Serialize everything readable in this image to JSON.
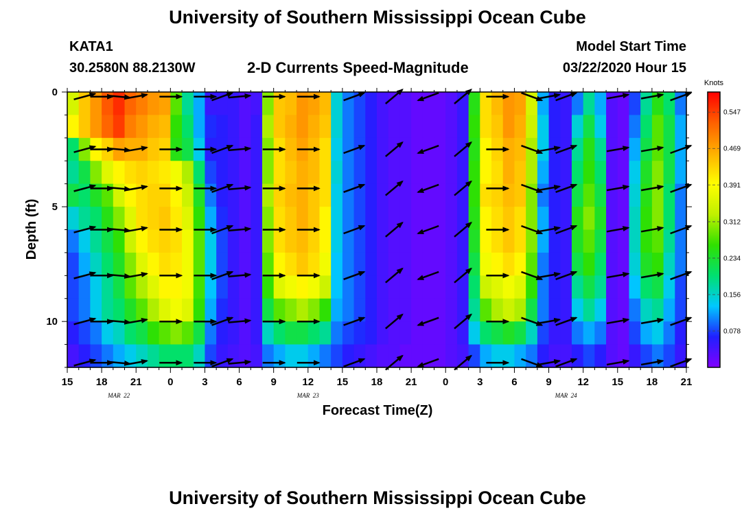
{
  "header": {
    "title": "University of Southern Mississippi Ocean Cube",
    "station": "KATA1",
    "coords": "30.2580N 88.2130W",
    "plot_title": "2-D Currents Speed-Magnitude",
    "start_label": "Model Start Time",
    "start_value": "03/22/2020 Hour 15",
    "footer_title": "University of Southern Mississippi Ocean Cube"
  },
  "colors": {
    "scale": [
      "#8000ff",
      "#2020ff",
      "#00c8ff",
      "#00e070",
      "#30e000",
      "#c0f000",
      "#ffff00",
      "#ffb000",
      "#ff6000",
      "#ff0000"
    ]
  },
  "chart_data": {
    "type": "heatmap",
    "title": "2-D Currents Speed-Magnitude",
    "xlabel": "Forecast Time(Z)",
    "ylabel": "Depth (ft)",
    "x_range_hours": [
      0,
      54
    ],
    "xticks": [
      {
        "h": 0,
        "label": "15"
      },
      {
        "h": 3,
        "label": "18"
      },
      {
        "h": 6,
        "label": "21"
      },
      {
        "h": 9,
        "label": "0"
      },
      {
        "h": 12,
        "label": "3"
      },
      {
        "h": 15,
        "label": "6"
      },
      {
        "h": 18,
        "label": "9"
      },
      {
        "h": 21,
        "label": "12"
      },
      {
        "h": 24,
        "label": "15"
      },
      {
        "h": 27,
        "label": "18"
      },
      {
        "h": 30,
        "label": "21"
      },
      {
        "h": 33,
        "label": "0"
      },
      {
        "h": 36,
        "label": "3"
      },
      {
        "h": 39,
        "label": "6"
      },
      {
        "h": 42,
        "label": "9"
      },
      {
        "h": 45,
        "label": "12"
      },
      {
        "h": 48,
        "label": "15"
      },
      {
        "h": 51,
        "label": "18"
      },
      {
        "h": 54,
        "label": "21"
      }
    ],
    "date_labels": [
      {
        "h": 4.5,
        "label": "MAR 22"
      },
      {
        "h": 21,
        "label": "MAR 23"
      },
      {
        "h": 43.5,
        "label": "MAR 24"
      }
    ],
    "y_range_ft": [
      0,
      12
    ],
    "yticks": [
      0,
      5,
      10
    ],
    "colorbar": {
      "unit": "Knots",
      "range": [
        0.0,
        0.59
      ],
      "ticks": [
        0.078,
        0.156,
        0.234,
        0.312,
        0.391,
        0.469,
        0.547
      ],
      "tick_labels": [
        "0.078",
        "0.156",
        "0.234",
        "0.312",
        "0.391",
        "0.469",
        "0.547"
      ]
    },
    "depths_ft": [
      0.5,
      1.5,
      2.5,
      3.5,
      4.5,
      5.5,
      6.5,
      7.5,
      8.5,
      9.5,
      10.5,
      11.5
    ],
    "time_hours": [
      0,
      1,
      2,
      3,
      4,
      5,
      6,
      7,
      8,
      9,
      10,
      11,
      12,
      13,
      14,
      15,
      16,
      17,
      18,
      19,
      20,
      21,
      22,
      23,
      24,
      25,
      26,
      27,
      28,
      29,
      30,
      31,
      32,
      33,
      34,
      35,
      36,
      37,
      38,
      39,
      40,
      41,
      42,
      43,
      44,
      45,
      46,
      47,
      48,
      49,
      50,
      51,
      52,
      53
    ],
    "speed_knots": [
      [
        0.35,
        0.44,
        0.48,
        0.53,
        0.56,
        0.52,
        0.5,
        0.48,
        0.47,
        0.28,
        0.18,
        0.12,
        0.05,
        0.05,
        0.05,
        0.03,
        0.04,
        0.3,
        0.44,
        0.45,
        0.48,
        0.47,
        0.45,
        0.15,
        0.1,
        0.08,
        0.06,
        0.04,
        0.03,
        0.03,
        0.02,
        0.02,
        0.02,
        0.03,
        0.05,
        0.25,
        0.42,
        0.45,
        0.48,
        0.47,
        0.35,
        0.12,
        0.06,
        0.05,
        0.1,
        0.18,
        0.12,
        0.03,
        0.02,
        0.08,
        0.18,
        0.25,
        0.2,
        0.1
      ],
      [
        0.4,
        0.44,
        0.48,
        0.52,
        0.55,
        0.5,
        0.48,
        0.46,
        0.45,
        0.26,
        0.2,
        0.12,
        0.07,
        0.06,
        0.05,
        0.03,
        0.05,
        0.32,
        0.44,
        0.46,
        0.48,
        0.46,
        0.44,
        0.15,
        0.1,
        0.08,
        0.06,
        0.04,
        0.03,
        0.03,
        0.02,
        0.02,
        0.02,
        0.03,
        0.05,
        0.26,
        0.42,
        0.44,
        0.48,
        0.46,
        0.34,
        0.14,
        0.06,
        0.05,
        0.15,
        0.22,
        0.14,
        0.03,
        0.02,
        0.1,
        0.2,
        0.28,
        0.22,
        0.12
      ],
      [
        0.2,
        0.3,
        0.4,
        0.43,
        0.47,
        0.46,
        0.46,
        0.44,
        0.43,
        0.25,
        0.22,
        0.14,
        0.06,
        0.06,
        0.05,
        0.03,
        0.05,
        0.3,
        0.42,
        0.45,
        0.47,
        0.45,
        0.42,
        0.14,
        0.1,
        0.08,
        0.06,
        0.04,
        0.03,
        0.03,
        0.02,
        0.02,
        0.02,
        0.03,
        0.05,
        0.25,
        0.4,
        0.43,
        0.46,
        0.45,
        0.32,
        0.14,
        0.06,
        0.05,
        0.18,
        0.25,
        0.18,
        0.03,
        0.02,
        0.12,
        0.22,
        0.28,
        0.22,
        0.12
      ],
      [
        0.18,
        0.22,
        0.3,
        0.36,
        0.4,
        0.42,
        0.43,
        0.42,
        0.41,
        0.38,
        0.32,
        0.2,
        0.08,
        0.06,
        0.05,
        0.03,
        0.05,
        0.3,
        0.42,
        0.44,
        0.46,
        0.45,
        0.42,
        0.15,
        0.1,
        0.08,
        0.06,
        0.04,
        0.03,
        0.03,
        0.02,
        0.02,
        0.02,
        0.03,
        0.05,
        0.26,
        0.4,
        0.42,
        0.46,
        0.44,
        0.32,
        0.12,
        0.06,
        0.05,
        0.2,
        0.26,
        0.2,
        0.03,
        0.02,
        0.14,
        0.24,
        0.3,
        0.22,
        0.12
      ],
      [
        0.22,
        0.2,
        0.24,
        0.28,
        0.35,
        0.4,
        0.42,
        0.43,
        0.43,
        0.4,
        0.34,
        0.24,
        0.1,
        0.06,
        0.05,
        0.03,
        0.05,
        0.32,
        0.43,
        0.45,
        0.46,
        0.44,
        0.42,
        0.14,
        0.1,
        0.08,
        0.06,
        0.04,
        0.03,
        0.03,
        0.02,
        0.02,
        0.02,
        0.03,
        0.05,
        0.26,
        0.42,
        0.43,
        0.45,
        0.44,
        0.3,
        0.1,
        0.06,
        0.05,
        0.22,
        0.28,
        0.22,
        0.03,
        0.02,
        0.15,
        0.25,
        0.3,
        0.2,
        0.1
      ],
      [
        0.15,
        0.18,
        0.2,
        0.25,
        0.3,
        0.36,
        0.42,
        0.43,
        0.44,
        0.41,
        0.36,
        0.26,
        0.12,
        0.07,
        0.05,
        0.03,
        0.05,
        0.3,
        0.42,
        0.44,
        0.46,
        0.44,
        0.4,
        0.14,
        0.1,
        0.08,
        0.06,
        0.04,
        0.03,
        0.03,
        0.02,
        0.02,
        0.02,
        0.03,
        0.05,
        0.25,
        0.4,
        0.42,
        0.44,
        0.42,
        0.3,
        0.12,
        0.06,
        0.05,
        0.25,
        0.3,
        0.24,
        0.03,
        0.02,
        0.16,
        0.26,
        0.3,
        0.2,
        0.1
      ],
      [
        0.1,
        0.14,
        0.18,
        0.22,
        0.26,
        0.34,
        0.4,
        0.42,
        0.43,
        0.42,
        0.38,
        0.28,
        0.14,
        0.08,
        0.05,
        0.03,
        0.05,
        0.3,
        0.42,
        0.44,
        0.45,
        0.43,
        0.4,
        0.14,
        0.1,
        0.08,
        0.06,
        0.04,
        0.03,
        0.03,
        0.02,
        0.02,
        0.02,
        0.03,
        0.05,
        0.24,
        0.4,
        0.42,
        0.44,
        0.42,
        0.3,
        0.12,
        0.06,
        0.05,
        0.24,
        0.28,
        0.22,
        0.03,
        0.02,
        0.16,
        0.26,
        0.28,
        0.18,
        0.1
      ],
      [
        0.08,
        0.12,
        0.16,
        0.2,
        0.24,
        0.3,
        0.36,
        0.4,
        0.42,
        0.41,
        0.38,
        0.28,
        0.14,
        0.08,
        0.05,
        0.03,
        0.05,
        0.28,
        0.4,
        0.42,
        0.44,
        0.42,
        0.38,
        0.13,
        0.1,
        0.08,
        0.06,
        0.04,
        0.03,
        0.03,
        0.02,
        0.02,
        0.02,
        0.03,
        0.05,
        0.22,
        0.38,
        0.4,
        0.42,
        0.4,
        0.28,
        0.1,
        0.06,
        0.05,
        0.22,
        0.26,
        0.2,
        0.03,
        0.02,
        0.15,
        0.24,
        0.26,
        0.16,
        0.1
      ],
      [
        0.08,
        0.1,
        0.14,
        0.18,
        0.22,
        0.28,
        0.32,
        0.36,
        0.4,
        0.4,
        0.38,
        0.27,
        0.13,
        0.08,
        0.05,
        0.03,
        0.05,
        0.26,
        0.36,
        0.38,
        0.4,
        0.38,
        0.34,
        0.13,
        0.1,
        0.08,
        0.06,
        0.04,
        0.03,
        0.03,
        0.02,
        0.02,
        0.02,
        0.03,
        0.05,
        0.2,
        0.34,
        0.36,
        0.38,
        0.36,
        0.26,
        0.1,
        0.06,
        0.05,
        0.18,
        0.22,
        0.18,
        0.03,
        0.02,
        0.13,
        0.2,
        0.22,
        0.14,
        0.08
      ],
      [
        0.08,
        0.1,
        0.14,
        0.18,
        0.2,
        0.24,
        0.28,
        0.32,
        0.36,
        0.38,
        0.36,
        0.26,
        0.12,
        0.07,
        0.05,
        0.03,
        0.05,
        0.22,
        0.28,
        0.3,
        0.32,
        0.3,
        0.26,
        0.12,
        0.1,
        0.08,
        0.06,
        0.04,
        0.03,
        0.03,
        0.02,
        0.02,
        0.02,
        0.03,
        0.05,
        0.18,
        0.28,
        0.32,
        0.34,
        0.32,
        0.22,
        0.1,
        0.06,
        0.05,
        0.14,
        0.18,
        0.14,
        0.03,
        0.02,
        0.1,
        0.16,
        0.18,
        0.12,
        0.08
      ],
      [
        0.06,
        0.08,
        0.1,
        0.14,
        0.16,
        0.2,
        0.22,
        0.26,
        0.28,
        0.3,
        0.28,
        0.22,
        0.1,
        0.06,
        0.05,
        0.03,
        0.05,
        0.16,
        0.2,
        0.22,
        0.22,
        0.2,
        0.18,
        0.1,
        0.08,
        0.07,
        0.06,
        0.04,
        0.03,
        0.03,
        0.02,
        0.02,
        0.02,
        0.03,
        0.05,
        0.14,
        0.2,
        0.22,
        0.24,
        0.22,
        0.16,
        0.08,
        0.05,
        0.05,
        0.1,
        0.12,
        0.1,
        0.03,
        0.02,
        0.08,
        0.12,
        0.14,
        0.1,
        0.06
      ],
      [
        0.04,
        0.06,
        0.08,
        0.1,
        0.12,
        0.14,
        0.16,
        0.18,
        0.2,
        0.2,
        0.2,
        0.16,
        0.08,
        0.05,
        0.04,
        0.03,
        0.04,
        0.1,
        0.12,
        0.14,
        0.14,
        0.12,
        0.1,
        0.08,
        0.06,
        0.05,
        0.04,
        0.03,
        0.03,
        0.02,
        0.02,
        0.02,
        0.02,
        0.03,
        0.04,
        0.08,
        0.12,
        0.14,
        0.14,
        0.12,
        0.1,
        0.06,
        0.04,
        0.04,
        0.06,
        0.08,
        0.06,
        0.03,
        0.02,
        0.05,
        0.08,
        0.1,
        0.08,
        0.05
      ]
    ],
    "vectors": {
      "times_h": [
        1.5,
        3,
        4.5,
        6,
        9,
        12,
        13.5,
        15,
        18,
        21,
        25,
        28.5,
        31.5,
        34.5,
        37.5,
        40.5,
        42,
        43.5,
        48,
        51,
        53.5
      ],
      "depths_ft": [
        0.2,
        2.5,
        4.2,
        6.0,
        8.0,
        10.0,
        11.8
      ],
      "angles_deg": [
        15,
        0,
        -5,
        10,
        0,
        0,
        20,
        5,
        0,
        0,
        20,
        40,
        200,
        40,
        0,
        -20,
        10,
        20,
        10,
        10,
        20
      ]
    }
  }
}
